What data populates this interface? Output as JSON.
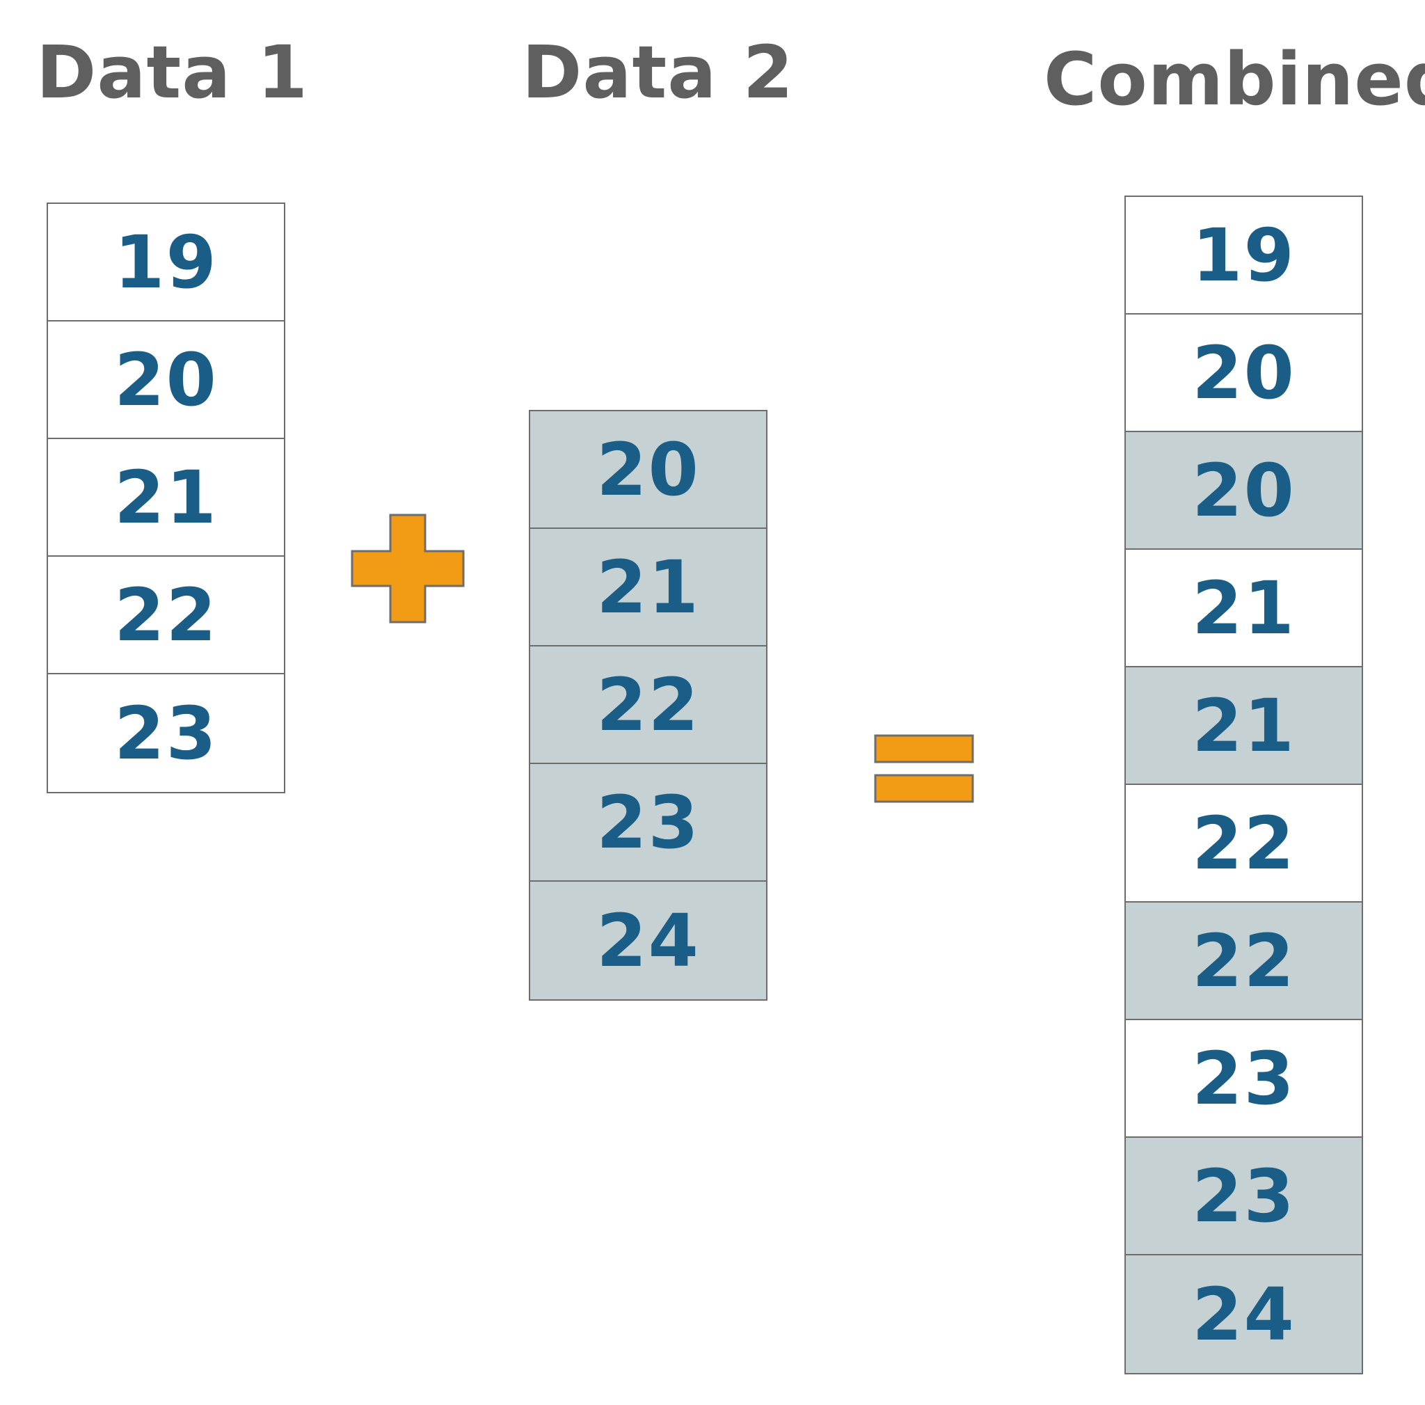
{
  "headings": {
    "data1": "Data 1",
    "data2": "Data 2",
    "combined": "Combined"
  },
  "colors": {
    "heading": "#5f5f5f",
    "number": "#1a5e88",
    "data1_fill": "#ffffff",
    "data2_fill": "#c5d1d3",
    "operator_fill": "#f29c15",
    "border": "#6d6d6d"
  },
  "operators": {
    "plus_icon": "plus-icon",
    "equals_icon": "equals-icon"
  },
  "data1": [
    "19",
    "20",
    "21",
    "22",
    "23"
  ],
  "data2": [
    "20",
    "21",
    "22",
    "23",
    "24"
  ],
  "combined": [
    {
      "value": "19",
      "source": 1
    },
    {
      "value": "20",
      "source": 1
    },
    {
      "value": "20",
      "source": 2
    },
    {
      "value": "21",
      "source": 1
    },
    {
      "value": "21",
      "source": 2
    },
    {
      "value": "22",
      "source": 1
    },
    {
      "value": "22",
      "source": 2
    },
    {
      "value": "23",
      "source": 1
    },
    {
      "value": "23",
      "source": 2
    },
    {
      "value": "24",
      "source": 2
    }
  ]
}
